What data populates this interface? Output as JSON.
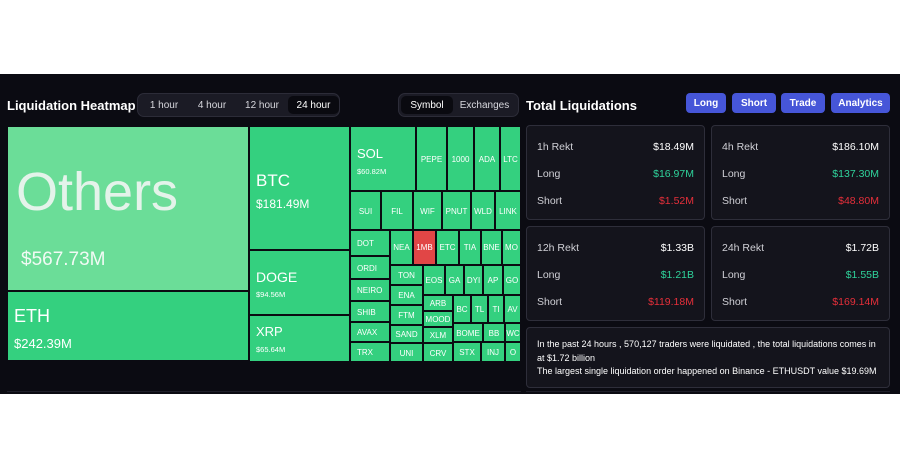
{
  "heatmap": {
    "title": "Liquidation Heatmap",
    "time_tabs": [
      "1 hour",
      "4 hour",
      "12 hour",
      "24 hour"
    ],
    "active_time": "24 hour",
    "mode_tabs": [
      "Symbol",
      "Exchanges"
    ],
    "active_mode": "Symbol",
    "tiles": {
      "others": {
        "name": "Others",
        "value": "$567.73M"
      },
      "eth": {
        "name": "ETH",
        "value": "$242.39M"
      },
      "btc": {
        "name": "BTC",
        "value": "$181.49M"
      },
      "doge": {
        "name": "DOGE",
        "value": "$94.56M"
      },
      "xrp": {
        "name": "XRP",
        "value": "$65.64M"
      },
      "sol": {
        "name": "SOL",
        "value": "$60.82M"
      },
      "small": [
        "PEPE",
        "1000",
        "ADA",
        "LTC",
        "SUI",
        "FIL",
        "WIF",
        "PNUT",
        "WLD",
        "LINK",
        "DOT",
        "NEA",
        "1MB",
        "ETC",
        "TIA",
        "BNE",
        "MO",
        "ORDI",
        "TON",
        "EOS",
        "GA",
        "DYI",
        "AP",
        "GO",
        "NEIRO",
        "ENA",
        "ARB",
        "BC",
        "TL",
        "TI",
        "AV",
        "SHIB",
        "FTM",
        "MOOD",
        "AVAX",
        "SAND",
        "XLM",
        "BOME",
        "BB",
        "WC",
        "TRX",
        "UNI",
        "CRV",
        "STX",
        "INJ",
        "O"
      ]
    }
  },
  "totals": {
    "title": "Total Liquidations",
    "buttons": [
      "Long",
      "Short",
      "Trade",
      "Analytics"
    ],
    "cards": [
      {
        "label": "1h Rekt",
        "total": "$18.49M",
        "long_label": "Long",
        "long": "$16.97M",
        "short_label": "Short",
        "short": "$1.52M"
      },
      {
        "label": "4h Rekt",
        "total": "$186.10M",
        "long_label": "Long",
        "long": "$137.30M",
        "short_label": "Short",
        "short": "$48.80M"
      },
      {
        "label": "12h Rekt",
        "total": "$1.33B",
        "long_label": "Long",
        "long": "$1.21B",
        "short_label": "Short",
        "short": "$119.18M"
      },
      {
        "label": "24h Rekt",
        "total": "$1.72B",
        "long_label": "Long",
        "long": "$1.55B",
        "short_label": "Short",
        "short": "$169.14M"
      }
    ],
    "info_line1": "In the past 24 hours , 570,127 traders were liquidated , the total liquidations comes in at $1.72 billion",
    "info_line2": "The largest single liquidation order happened on Binance - ETHUSDT value $19.69M"
  },
  "colors": {
    "accent": "#4656d8",
    "long": "#2fd39b",
    "short": "#e52f3a",
    "tile": "#34d07f"
  }
}
